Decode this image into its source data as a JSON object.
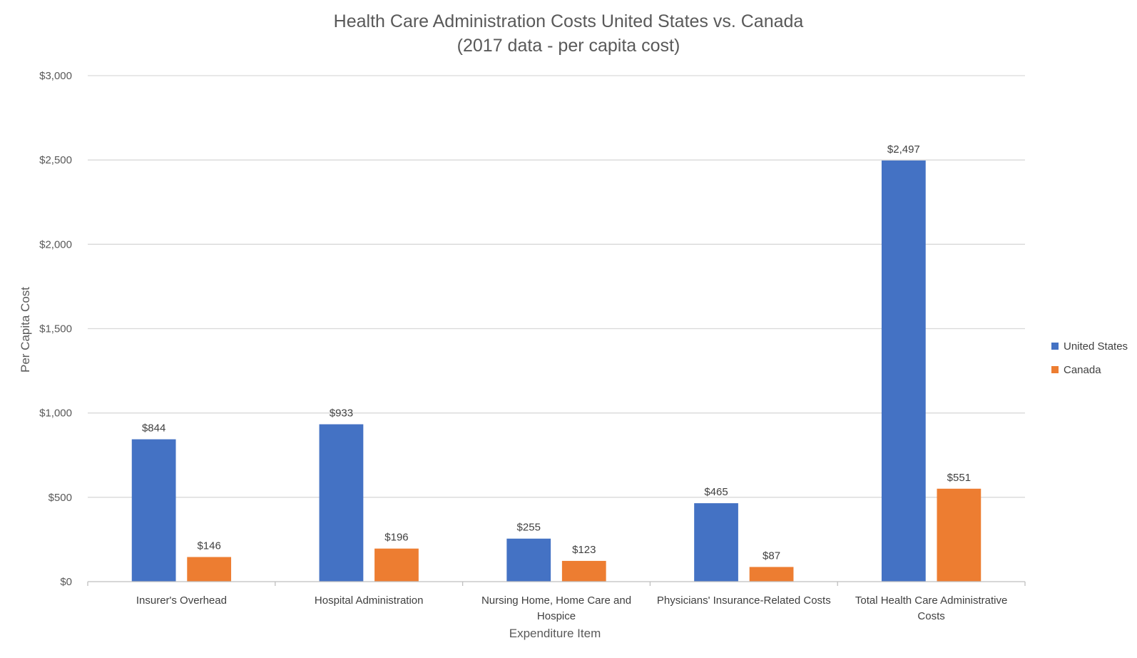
{
  "chart_data": {
    "type": "bar",
    "title_lines": [
      "Health Care Administration Costs United States vs. Canada",
      "(2017 data - per capita cost)"
    ],
    "xlabel": "Expenditure Item",
    "ylabel": "Per Capita Cost",
    "ylim": [
      0,
      3000
    ],
    "y_ticks": [
      0,
      500,
      1000,
      1500,
      2000,
      2500,
      3000
    ],
    "y_tick_labels": [
      "$0",
      "$500",
      "$1,000",
      "$1,500",
      "$2,000",
      "$2,500",
      "$3,000"
    ],
    "categories": [
      [
        "Insurer's Overhead"
      ],
      [
        "Hospital Administration"
      ],
      [
        "Nursing Home, Home Care and",
        "Hospice"
      ],
      [
        "Physicians' Insurance-Related Costs"
      ],
      [
        "Total Health Care Administrative",
        "Costs"
      ]
    ],
    "series": [
      {
        "name": "United States",
        "color": "#4472c4",
        "values": [
          844,
          933,
          255,
          465,
          2497
        ],
        "labels": [
          "$844",
          "$933",
          "$255",
          "$465",
          "$2,497"
        ]
      },
      {
        "name": "Canada",
        "color": "#ed7d31",
        "values": [
          146,
          196,
          123,
          87,
          551
        ],
        "labels": [
          "$146",
          "$196",
          "$123",
          "$87",
          "$551"
        ]
      }
    ],
    "grid": true,
    "legend_position": "right"
  }
}
